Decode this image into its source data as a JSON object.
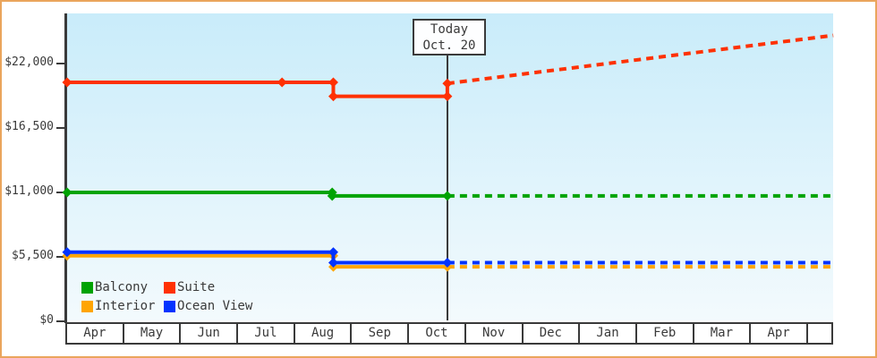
{
  "colors": {
    "frame_border": "#eaa55c",
    "axis": "#3a3a3a",
    "plot_bg_top": "#c9ecfa",
    "plot_bg_bottom": "#f3fafd",
    "balcony": "#00a303",
    "suite": "#ff3103",
    "interior": "#ffa503",
    "ocean_view": "#0233ff"
  },
  "chart_data": {
    "type": "line",
    "title": "",
    "xlabel": "",
    "ylabel": "",
    "grid": false,
    "y_axis": {
      "ylim": [
        0,
        26300
      ],
      "ticks": [
        {
          "value": 0,
          "label": "$0"
        },
        {
          "value": 5500,
          "label": "$5,500"
        },
        {
          "value": 11000,
          "label": "$11,000"
        },
        {
          "value": 16500,
          "label": "$16,500"
        },
        {
          "value": 22000,
          "label": "$22,000"
        }
      ]
    },
    "x_categories": [
      "Apr",
      "May",
      "Jun",
      "Jul",
      "Aug",
      "Sep",
      "Oct",
      "Nov",
      "Dec",
      "Jan",
      "Feb",
      "Mar",
      "Apr"
    ],
    "today": {
      "title": "Today",
      "date": "Oct. 20",
      "month_offset": 6.67
    },
    "series": [
      {
        "name": "Balcony",
        "color": "#00a303",
        "solid": [
          [
            0,
            11000
          ],
          [
            4.65,
            11000
          ],
          [
            4.65,
            10700
          ],
          [
            6.67,
            10700
          ]
        ],
        "dashed": [
          [
            6.67,
            10700
          ],
          [
            13.44,
            10700
          ]
        ],
        "markers": [
          [
            0,
            11000
          ],
          [
            4.65,
            11000
          ],
          [
            4.65,
            10700
          ],
          [
            6.67,
            10700
          ]
        ]
      },
      {
        "name": "Interior",
        "color": "#ffa503",
        "solid": [
          [
            0,
            5600
          ],
          [
            4.67,
            5600
          ],
          [
            4.67,
            4650
          ],
          [
            6.67,
            4650
          ]
        ],
        "dashed": [
          [
            6.67,
            4650
          ],
          [
            13.44,
            4650
          ]
        ],
        "markers": [
          [
            0,
            5600
          ],
          [
            4.67,
            5600
          ],
          [
            4.67,
            4650
          ],
          [
            6.67,
            4650
          ]
        ]
      },
      {
        "name": "Ocean View",
        "color": "#0233ff",
        "solid": [
          [
            0,
            5900
          ],
          [
            4.67,
            5900
          ],
          [
            4.67,
            5000
          ],
          [
            6.67,
            5000
          ]
        ],
        "dashed": [
          [
            6.67,
            5000
          ],
          [
            13.44,
            5000
          ]
        ],
        "markers": [
          [
            0,
            5900
          ],
          [
            4.67,
            5900
          ],
          [
            4.67,
            5000
          ],
          [
            6.67,
            5000
          ]
        ]
      },
      {
        "name": "Suite",
        "color": "#ff3103",
        "solid": [
          [
            0,
            20400
          ],
          [
            3.77,
            20400
          ],
          [
            4.67,
            20400
          ],
          [
            4.67,
            19200
          ],
          [
            6.67,
            19200
          ],
          [
            6.67,
            20300
          ]
        ],
        "dashed": [
          [
            6.67,
            20300
          ],
          [
            13.44,
            24400
          ]
        ],
        "markers": [
          [
            0,
            20400
          ],
          [
            3.77,
            20400
          ],
          [
            4.67,
            20400
          ],
          [
            4.67,
            19200
          ],
          [
            6.67,
            19200
          ],
          [
            6.67,
            20300
          ]
        ]
      }
    ],
    "legend": {
      "position": "bottom-left",
      "items": [
        {
          "label": "Balcony",
          "color": "#00a303"
        },
        {
          "label": "Suite",
          "color": "#ff3103"
        },
        {
          "label": "Interior",
          "color": "#ffa503"
        },
        {
          "label": "Ocean View",
          "color": "#0233ff"
        }
      ]
    }
  }
}
